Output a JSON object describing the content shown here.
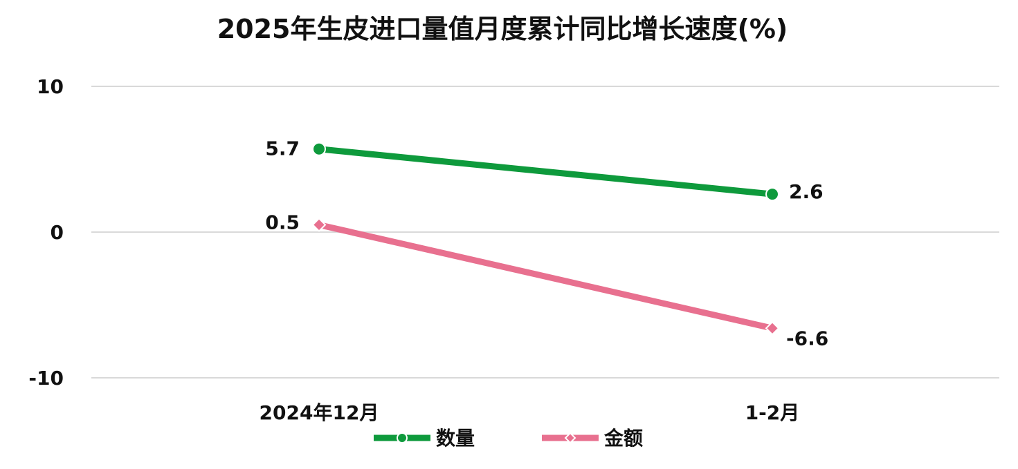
{
  "chart_data": {
    "type": "line",
    "title": "2025年生皮进口量值月度累计同比增长速度(%)",
    "xlabel": "",
    "ylabel": "",
    "categories": [
      "2024年12月",
      "1-2月"
    ],
    "ylim": [
      -10,
      10
    ],
    "yticks": [
      10,
      0,
      -10
    ],
    "grid": true,
    "legend_position": "bottom",
    "series": [
      {
        "name": "数量",
        "values": [
          5.7,
          2.6
        ],
        "labels": [
          "5.7",
          "2.6"
        ],
        "color": "#0E9A3C",
        "marker": "circle"
      },
      {
        "name": "金额",
        "values": [
          0.5,
          -6.6
        ],
        "labels": [
          "0.5",
          "-6.6"
        ],
        "color": "#E8708F",
        "marker": "diamond"
      }
    ]
  }
}
